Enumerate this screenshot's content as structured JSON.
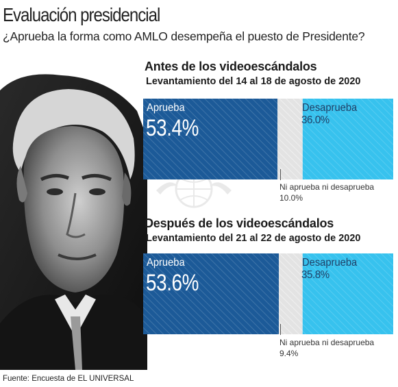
{
  "header": {
    "title": "Evaluación presidencial",
    "subtitle": "¿Aprueba la forma como AMLO desempeña el puesto de Presidente?"
  },
  "sections": [
    {
      "heading": "Antes de los videoescándalos",
      "subheading": "Levantamiento del 14 al 18 de agosto de 2020",
      "neutral_label": "Ni aprueba ni desaprueba",
      "neutral_value": "10.0%",
      "approve_label": "Aprueba",
      "approve_value": "53.4%",
      "disapprove_label": "Desaprueba",
      "disapprove_value": "36.0%"
    },
    {
      "heading": "Después de los videoescándalos",
      "subheading": "Levantamiento del 21 al 22 de agosto de 2020",
      "neutral_label": "Ni aprueba ni desaprueba",
      "neutral_value": "9.4%",
      "approve_label": "Aprueba",
      "approve_value": "53.6%",
      "disapprove_label": "Desaprueba",
      "disapprove_value": "35.8%"
    }
  ],
  "footer": {
    "source": "Fuente: Encuesta de EL UNIVERSAL"
  },
  "colors": {
    "approve": "#1c5a98",
    "neutral": "#e3e3e3",
    "disapprove": "#37c2ee"
  },
  "chart_data": [
    {
      "type": "bar",
      "stacked": true,
      "orientation": "horizontal",
      "title": "Antes de los videoescándalos",
      "subtitle": "Levantamiento del 14 al 18 de agosto de 2020",
      "categories": [
        "Aprueba",
        "Ni aprueba ni desaprueba",
        "Desaprueba"
      ],
      "values": [
        53.4,
        10.0,
        36.0
      ]
    },
    {
      "type": "bar",
      "stacked": true,
      "orientation": "horizontal",
      "title": "Después de los videoescándalos",
      "subtitle": "Levantamiento del 21 al 22 de agosto de 2020",
      "categories": [
        "Aprueba",
        "Ni aprueba ni desaprueba",
        "Desaprueba"
      ],
      "values": [
        53.6,
        9.4,
        35.8
      ]
    }
  ]
}
